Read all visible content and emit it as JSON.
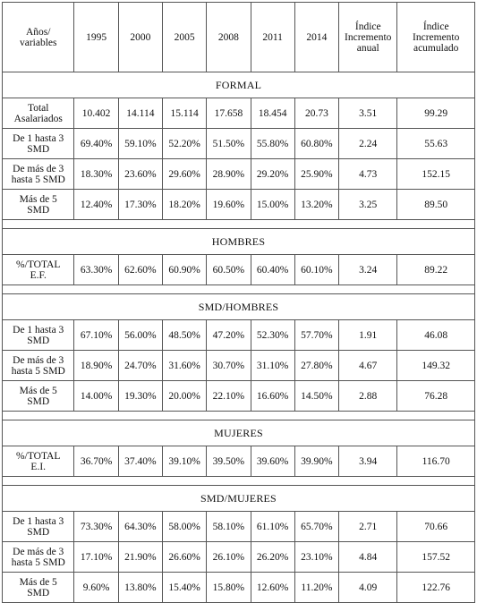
{
  "header": {
    "first_col": [
      "Años/",
      "variables"
    ],
    "years": [
      "1995",
      "2000",
      "2005",
      "2008",
      "2011",
      "2014"
    ],
    "indice_anual": [
      "Índice",
      "Incremento",
      "anual"
    ],
    "indice_acumulado": [
      "Índice",
      "Incremento",
      "acumulado"
    ]
  },
  "sections": [
    {
      "title": "FORMAL",
      "rows": [
        {
          "label": [
            "Total",
            "Asalariados"
          ],
          "values": [
            "10.402",
            "14.114",
            "15.114",
            "17.658",
            "18.454",
            "20.73"
          ],
          "anual": "3.51",
          "acumulado": "99.29"
        },
        {
          "label": [
            "De 1 hasta 3",
            "SMD"
          ],
          "values": [
            "69.40%",
            "59.10%",
            "52.20%",
            "51.50%",
            "55.80%",
            "60.80%"
          ],
          "anual": "2.24",
          "acumulado": "55.63"
        },
        {
          "label": [
            "De más de 3",
            "hasta 5 SMD"
          ],
          "values": [
            "18.30%",
            "23.60%",
            "29.60%",
            "28.90%",
            "29.20%",
            "25.90%"
          ],
          "anual": "4.73",
          "acumulado": "152.15"
        },
        {
          "label": [
            "Más de 5",
            "SMD"
          ],
          "values": [
            "12.40%",
            "17.30%",
            "18.20%",
            "19.60%",
            "15.00%",
            "13.20%"
          ],
          "anual": "3.25",
          "acumulado": "89.50"
        }
      ]
    },
    {
      "title": "HOMBRES",
      "rows": [
        {
          "label": [
            "%/TOTAL",
            "E.F."
          ],
          "values": [
            "63.30%",
            "62.60%",
            "60.90%",
            "60.50%",
            "60.40%",
            "60.10%"
          ],
          "anual": "3.24",
          "acumulado": "89.22"
        }
      ]
    },
    {
      "title": "SMD/HOMBRES",
      "rows": [
        {
          "label": [
            "De 1 hasta 3",
            "SMD"
          ],
          "values": [
            "67.10%",
            "56.00%",
            "48.50%",
            "47.20%",
            "52.30%",
            "57.70%"
          ],
          "anual": "1.91",
          "acumulado": "46.08"
        },
        {
          "label": [
            "De más de 3",
            "hasta 5 SMD"
          ],
          "values": [
            "18.90%",
            "24.70%",
            "31.60%",
            "30.70%",
            "31.10%",
            "27.80%"
          ],
          "anual": "4.67",
          "acumulado": "149.32"
        },
        {
          "label": [
            "Más de 5",
            "SMD"
          ],
          "values": [
            "14.00%",
            "19.30%",
            "20.00%",
            "22.10%",
            "16.60%",
            "14.50%"
          ],
          "anual": "2.88",
          "acumulado": "76.28"
        }
      ]
    },
    {
      "title": "MUJERES",
      "rows": [
        {
          "label": [
            "%/TOTAL",
            "E.I."
          ],
          "values": [
            "36.70%",
            "37.40%",
            "39.10%",
            "39.50%",
            "39.60%",
            "39.90%"
          ],
          "anual": "3.94",
          "acumulado": "116.70"
        }
      ]
    },
    {
      "title": "SMD/MUJERES",
      "rows": [
        {
          "label": [
            "De 1 hasta 3",
            "SMD"
          ],
          "values": [
            "73.30%",
            "64.30%",
            "58.00%",
            "58.10%",
            "61.10%",
            "65.70%"
          ],
          "anual": "2.71",
          "acumulado": "70.66"
        },
        {
          "label": [
            "De más de 3",
            "hasta 5 SMD"
          ],
          "values": [
            "17.10%",
            "21.90%",
            "26.60%",
            "26.10%",
            "26.20%",
            "23.10%"
          ],
          "anual": "4.84",
          "acumulado": "157.52"
        },
        {
          "label": [
            "Más de 5",
            "SMD"
          ],
          "values": [
            "9.60%",
            "13.80%",
            "15.40%",
            "15.80%",
            "12.60%",
            "11.20%"
          ],
          "anual": "4.09",
          "acumulado": "122.76"
        }
      ]
    }
  ]
}
